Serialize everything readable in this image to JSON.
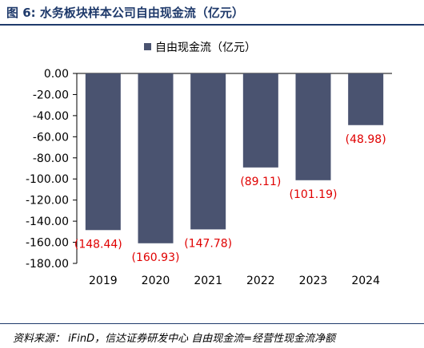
{
  "title": "图 6:  水务板块样本公司自由现金流（亿元）",
  "source": "资料来源：  iFinD，信达证券研发中心  自由现金流=经营性现金流净额",
  "colors": {
    "bar": "#4a5370",
    "label": "#e00000",
    "axis": "#000000",
    "title": "#1f3a6b"
  },
  "chart_data": {
    "type": "bar",
    "categories": [
      "2019",
      "2020",
      "2021",
      "2022",
      "2023",
      "2024"
    ],
    "series": [
      {
        "name": "自由现金流（亿元）",
        "values": [
          -148.44,
          -160.93,
          -147.78,
          -89.11,
          -101.19,
          -48.98
        ]
      }
    ],
    "data_labels": [
      "(148.44)",
      "(160.93)",
      "(147.78)",
      "(89.11)",
      "(101.19)",
      "(48.98)"
    ],
    "ylim": [
      -180,
      0
    ],
    "yticks": [
      0,
      -20,
      -40,
      -60,
      -80,
      -100,
      -120,
      -140,
      -160,
      -180
    ],
    "ytick_labels": [
      "0.00",
      "-20.00",
      "-40.00",
      "-60.00",
      "-80.00",
      "-100.00",
      "-120.00",
      "-140.00",
      "-160.00",
      "-180.00"
    ],
    "legend_position": "top-center",
    "grid": false
  }
}
